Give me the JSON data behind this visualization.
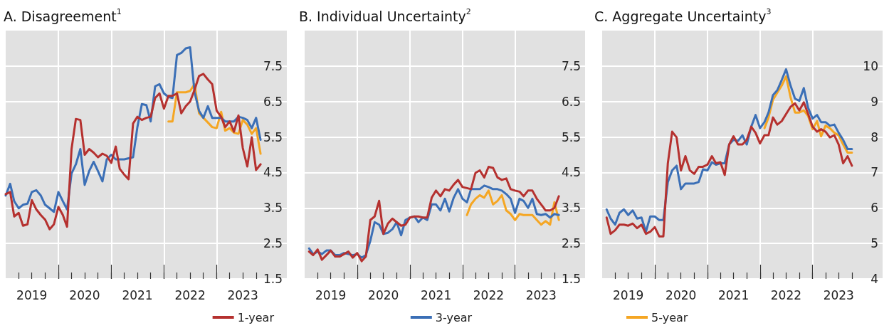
{
  "chart_data": [
    {
      "type": "line",
      "title": "A. Disagreement$^{1}$",
      "xlim": [
        "2019-01",
        "2024-05"
      ],
      "ylim": [
        1.5,
        8.5
      ],
      "yticks": [
        1.5,
        2.5,
        3.5,
        4.5,
        5.5,
        6.5,
        7.5
      ],
      "grid": true,
      "legend": "bottom right",
      "xticks": [
        {
          "value": "2019-04",
          "label": null
        },
        {
          "value": "2019-07",
          "label": "2019"
        },
        {
          "value": "2019-10",
          "label": null
        },
        {
          "value": "2020-01",
          "label": null
        },
        {
          "value": "2020-04",
          "label": null
        },
        {
          "value": "2020-07",
          "label": "2020"
        },
        {
          "value": "2020-10",
          "label": null
        },
        {
          "value": "2021-01",
          "label": null
        },
        {
          "value": "2021-04",
          "label": null
        },
        {
          "value": "2021-07",
          "label": "2021"
        },
        {
          "value": "2021-10",
          "label": null
        },
        {
          "value": "2022-01",
          "label": null
        },
        {
          "value": "2022-04",
          "label": null
        },
        {
          "value": "2022-07",
          "label": "2022"
        },
        {
          "value": "2022-10",
          "label": null
        },
        {
          "value": "2023-01",
          "label": null
        },
        {
          "value": "2023-04",
          "label": null
        },
        {
          "value": "2023-07",
          "label": "2023"
        },
        {
          "value": "2023-10",
          "label": null
        }
      ],
      "x": [
        "2019-01",
        "2019-02",
        "2019-03",
        "2019-04",
        "2019-05",
        "2019-06",
        "2019-07",
        "2019-08",
        "2019-09",
        "2019-10",
        "2019-11",
        "2019-12",
        "2020-01",
        "2020-02",
        "2020-03",
        "2020-04",
        "2020-05",
        "2020-06",
        "2020-07",
        "2020-08",
        "2020-09",
        "2020-10",
        "2020-11",
        "2020-12",
        "2021-01",
        "2021-02",
        "2021-03",
        "2021-04",
        "2021-05",
        "2021-06",
        "2021-07",
        "2021-08",
        "2021-09",
        "2021-10",
        "2021-11",
        "2021-12",
        "2022-01",
        "2022-02",
        "2022-03",
        "2022-04",
        "2022-05",
        "2022-06",
        "2022-07",
        "2022-08",
        "2022-09",
        "2022-10",
        "2022-11",
        "2022-12",
        "2023-01",
        "2023-02",
        "2023-03",
        "2023-04",
        "2023-05",
        "2023-06",
        "2023-07",
        "2023-08",
        "2023-09",
        "2023-10",
        "2023-11"
      ],
      "series": [
        {
          "name": "1-year",
          "color": "#b5312f",
          "values": [
            3.89,
            3.95,
            3.26,
            3.36,
            3.0,
            3.04,
            3.72,
            3.46,
            3.3,
            3.17,
            2.9,
            3.04,
            3.53,
            3.3,
            2.97,
            5.16,
            6.01,
            5.98,
            5.0,
            5.16,
            5.06,
            4.93,
            5.03,
            4.97,
            4.77,
            5.23,
            4.6,
            4.44,
            4.31,
            5.88,
            6.07,
            5.98,
            6.04,
            6.07,
            6.6,
            6.73,
            6.3,
            6.66,
            6.66,
            6.73,
            6.17,
            6.37,
            6.5,
            6.83,
            7.22,
            7.28,
            7.12,
            6.99,
            6.24,
            6.07,
            5.78,
            5.94,
            5.65,
            6.11,
            5.19,
            4.67,
            5.49,
            4.57,
            4.73
          ]
        },
        {
          "color": "#3b6fb6",
          "values": [
            3.85,
            4.18,
            3.69,
            3.49,
            3.59,
            3.62,
            3.95,
            4.0,
            3.85,
            3.59,
            3.49,
            3.39,
            3.95,
            3.69,
            3.46,
            4.47,
            4.73,
            5.16,
            4.15,
            4.54,
            4.8,
            4.54,
            4.25,
            4.87,
            5.0,
            4.87,
            4.87,
            4.87,
            4.9,
            4.93,
            5.78,
            6.43,
            6.4,
            5.94,
            6.93,
            6.99,
            6.73,
            6.63,
            6.6,
            7.81,
            7.87,
            8.0,
            8.03,
            6.76,
            6.24,
            6.04,
            6.37,
            6.04,
            6.04,
            6.04,
            5.94,
            5.94,
            5.94,
            6.07,
            6.04,
            5.98,
            5.75,
            6.04,
            5.42
          ]
        },
        {
          "color": "#f5a623",
          "values": [
            null,
            null,
            null,
            null,
            null,
            null,
            null,
            null,
            null,
            null,
            null,
            null,
            null,
            null,
            null,
            null,
            null,
            null,
            null,
            null,
            null,
            null,
            null,
            null,
            null,
            null,
            null,
            null,
            null,
            null,
            null,
            null,
            null,
            null,
            null,
            null,
            null,
            5.94,
            5.94,
            6.76,
            6.76,
            6.76,
            6.8,
            6.99,
            6.17,
            6.04,
            5.91,
            5.78,
            5.75,
            6.21,
            5.68,
            5.75,
            5.62,
            5.59,
            5.98,
            5.85,
            5.59,
            5.75,
            5.03
          ]
        }
      ]
    },
    {
      "type": "line",
      "title": "B. Individual Uncertainty$^{2}$",
      "xlim": [
        "2019-01",
        "2024-05"
      ],
      "ylim": [
        1.5,
        8.5
      ],
      "yticks": [
        1.5,
        2.5,
        3.5,
        4.5,
        5.5,
        6.5,
        7.5
      ],
      "grid": true,
      "legend": "bottom",
      "xticks": [
        {
          "value": "2019-04",
          "label": null
        },
        {
          "value": "2019-07",
          "label": "2019"
        },
        {
          "value": "2019-10",
          "label": null
        },
        {
          "value": "2020-01",
          "label": null
        },
        {
          "value": "2020-04",
          "label": null
        },
        {
          "value": "2020-07",
          "label": "2020"
        },
        {
          "value": "2020-10",
          "label": null
        },
        {
          "value": "2021-01",
          "label": null
        },
        {
          "value": "2021-04",
          "label": null
        },
        {
          "value": "2021-07",
          "label": "2021"
        },
        {
          "value": "2021-10",
          "label": null
        },
        {
          "value": "2022-01",
          "label": null
        },
        {
          "value": "2022-04",
          "label": null
        },
        {
          "value": "2022-07",
          "label": "2022"
        },
        {
          "value": "2022-10",
          "label": null
        },
        {
          "value": "2023-01",
          "label": null
        },
        {
          "value": "2023-04",
          "label": null
        },
        {
          "value": "2023-07",
          "label": "2023"
        },
        {
          "value": "2023-10",
          "label": null
        }
      ],
      "x": [
        "2019-02",
        "2019-03",
        "2019-04",
        "2019-05",
        "2019-06",
        "2019-07",
        "2019-08",
        "2019-09",
        "2019-10",
        "2019-11",
        "2019-12",
        "2020-01",
        "2020-02",
        "2020-03",
        "2020-04",
        "2020-05",
        "2020-06",
        "2020-07",
        "2020-08",
        "2020-09",
        "2020-10",
        "2020-11",
        "2020-12",
        "2021-01",
        "2021-02",
        "2021-03",
        "2021-04",
        "2021-05",
        "2021-06",
        "2021-07",
        "2021-08",
        "2021-09",
        "2021-10",
        "2021-11",
        "2021-12",
        "2022-01",
        "2022-02",
        "2022-03",
        "2022-04",
        "2022-05",
        "2022-06",
        "2022-07",
        "2022-08",
        "2022-09",
        "2022-10",
        "2022-11",
        "2022-12",
        "2023-01",
        "2023-02",
        "2023-03",
        "2023-04",
        "2023-05",
        "2023-06",
        "2023-07",
        "2023-08",
        "2023-09",
        "2023-10",
        "2023-11"
      ],
      "series": [
        {
          "color": "#b5312f",
          "values": [
            2.27,
            2.17,
            2.33,
            2.04,
            2.17,
            2.3,
            2.13,
            2.13,
            2.2,
            2.27,
            2.1,
            2.23,
            2.0,
            2.13,
            3.16,
            3.26,
            3.7,
            2.77,
            3.06,
            3.2,
            3.1,
            3.0,
            3.03,
            3.23,
            3.26,
            3.26,
            3.23,
            3.23,
            3.79,
            3.99,
            3.83,
            4.03,
            3.99,
            4.16,
            4.29,
            4.09,
            4.06,
            4.03,
            4.49,
            4.56,
            4.36,
            4.66,
            4.63,
            4.36,
            4.29,
            4.33,
            4.03,
            3.99,
            3.96,
            3.83,
            3.99,
            3.99,
            3.76,
            3.6,
            3.43,
            3.43,
            3.5,
            3.83
          ]
        },
        {
          "name": "3-year",
          "color": "#3b6fb6",
          "values": [
            2.36,
            2.2,
            2.27,
            2.2,
            2.3,
            2.3,
            2.17,
            2.17,
            2.23,
            2.2,
            2.17,
            2.2,
            2.1,
            2.17,
            2.57,
            3.1,
            3.03,
            2.77,
            2.8,
            2.9,
            3.1,
            2.73,
            3.16,
            3.23,
            3.26,
            3.1,
            3.23,
            3.16,
            3.6,
            3.6,
            3.43,
            3.76,
            3.4,
            3.79,
            4.03,
            3.76,
            3.66,
            4.03,
            4.03,
            4.03,
            4.13,
            4.09,
            4.03,
            4.03,
            3.99,
            3.89,
            3.76,
            3.36,
            3.76,
            3.7,
            3.5,
            3.76,
            3.33,
            3.3,
            3.33,
            3.23,
            3.33,
            3.3
          ]
        },
        {
          "color": "#f5a623",
          "values": [
            null,
            null,
            null,
            null,
            null,
            null,
            null,
            null,
            null,
            null,
            null,
            null,
            null,
            null,
            null,
            null,
            null,
            null,
            null,
            null,
            null,
            null,
            null,
            null,
            null,
            null,
            null,
            null,
            null,
            null,
            null,
            null,
            null,
            null,
            null,
            null,
            3.3,
            3.6,
            3.76,
            3.86,
            3.79,
            3.99,
            3.6,
            3.7,
            3.86,
            3.43,
            3.33,
            3.16,
            3.33,
            3.3,
            3.3,
            3.3,
            3.16,
            3.03,
            3.13,
            3.03,
            3.66,
            3.16
          ]
        }
      ]
    },
    {
      "type": "line",
      "title": "C. Aggregate Uncertainty$^{3}$",
      "xlim": [
        "2019-01",
        "2024-05"
      ],
      "ylim": [
        4,
        11
      ],
      "yticks": [
        4,
        5,
        6,
        7,
        8,
        9,
        10
      ],
      "grid": true,
      "legend": "bottom left",
      "xticks": [
        {
          "value": "2019-04",
          "label": null
        },
        {
          "value": "2019-07",
          "label": "2019"
        },
        {
          "value": "2019-10",
          "label": null
        },
        {
          "value": "2020-01",
          "label": null
        },
        {
          "value": "2020-04",
          "label": null
        },
        {
          "value": "2020-07",
          "label": "2020"
        },
        {
          "value": "2020-10",
          "label": null
        },
        {
          "value": "2021-01",
          "label": null
        },
        {
          "value": "2021-04",
          "label": null
        },
        {
          "value": "2021-07",
          "label": "2021"
        },
        {
          "value": "2021-10",
          "label": null
        },
        {
          "value": "2022-01",
          "label": null
        },
        {
          "value": "2022-04",
          "label": null
        },
        {
          "value": "2022-07",
          "label": "2022"
        },
        {
          "value": "2022-10",
          "label": null
        },
        {
          "value": "2023-01",
          "label": null
        },
        {
          "value": "2023-04",
          "label": null
        },
        {
          "value": "2023-07",
          "label": "2023"
        },
        {
          "value": "2023-10",
          "label": null
        }
      ],
      "x": [
        "2019-02",
        "2019-03",
        "2019-04",
        "2019-05",
        "2019-06",
        "2019-07",
        "2019-08",
        "2019-09",
        "2019-10",
        "2019-11",
        "2019-12",
        "2020-01",
        "2020-02",
        "2020-03",
        "2020-04",
        "2020-05",
        "2020-06",
        "2020-07",
        "2020-08",
        "2020-09",
        "2020-10",
        "2020-11",
        "2020-12",
        "2021-01",
        "2021-02",
        "2021-03",
        "2021-04",
        "2021-05",
        "2021-06",
        "2021-07",
        "2021-08",
        "2021-09",
        "2021-10",
        "2021-11",
        "2021-12",
        "2022-01",
        "2022-02",
        "2022-03",
        "2022-04",
        "2022-05",
        "2022-06",
        "2022-07",
        "2022-08",
        "2022-09",
        "2022-10",
        "2022-11",
        "2022-12",
        "2023-01",
        "2023-02",
        "2023-03",
        "2023-04",
        "2023-05",
        "2023-06",
        "2023-07",
        "2023-08",
        "2023-09",
        "2023-10"
      ],
      "series": [
        {
          "color": "#b5312f",
          "values": [
            5.73,
            5.27,
            5.37,
            5.53,
            5.53,
            5.5,
            5.56,
            5.43,
            5.53,
            5.27,
            5.33,
            5.46,
            5.2,
            5.2,
            7.26,
            8.15,
            7.99,
            7.06,
            7.46,
            7.06,
            6.96,
            7.16,
            7.16,
            7.22,
            7.46,
            7.26,
            7.29,
            6.93,
            7.79,
            8.02,
            7.79,
            7.79,
            7.92,
            8.29,
            8.12,
            7.82,
            8.05,
            8.05,
            8.55,
            8.35,
            8.45,
            8.65,
            8.85,
            8.95,
            8.75,
            8.98,
            8.65,
            8.29,
            8.15,
            8.22,
            8.15,
            7.99,
            8.05,
            7.79,
            7.26,
            7.46,
            7.19
          ]
        },
        {
          "color": "#3b6fb6",
          "values": [
            5.96,
            5.7,
            5.53,
            5.86,
            5.96,
            5.8,
            5.93,
            5.7,
            5.73,
            5.33,
            5.76,
            5.76,
            5.66,
            5.66,
            6.73,
            7.06,
            7.19,
            6.53,
            6.69,
            6.69,
            6.69,
            6.73,
            7.09,
            7.06,
            7.29,
            7.22,
            7.26,
            7.26,
            7.79,
            7.92,
            7.89,
            8.05,
            7.79,
            8.29,
            8.62,
            8.25,
            8.42,
            8.69,
            9.18,
            9.32,
            9.61,
            9.91,
            9.45,
            9.08,
            9.02,
            9.38,
            8.82,
            8.52,
            8.62,
            8.42,
            8.42,
            8.32,
            8.35,
            8.12,
            7.92,
            7.66,
            7.66
          ]
        },
        {
          "name": "5-year",
          "color": "#f5a623",
          "values": [
            null,
            null,
            null,
            null,
            null,
            null,
            null,
            null,
            null,
            null,
            null,
            null,
            null,
            null,
            null,
            null,
            null,
            null,
            null,
            null,
            null,
            null,
            null,
            null,
            null,
            null,
            null,
            null,
            null,
            null,
            null,
            null,
            null,
            null,
            null,
            null,
            8.25,
            8.55,
            9.05,
            9.25,
            9.45,
            9.71,
            9.12,
            8.69,
            8.69,
            8.75,
            8.59,
            8.22,
            8.45,
            8.02,
            8.32,
            8.25,
            8.12,
            8.05,
            7.79,
            7.56,
            7.56
          ]
        }
      ]
    }
  ]
}
